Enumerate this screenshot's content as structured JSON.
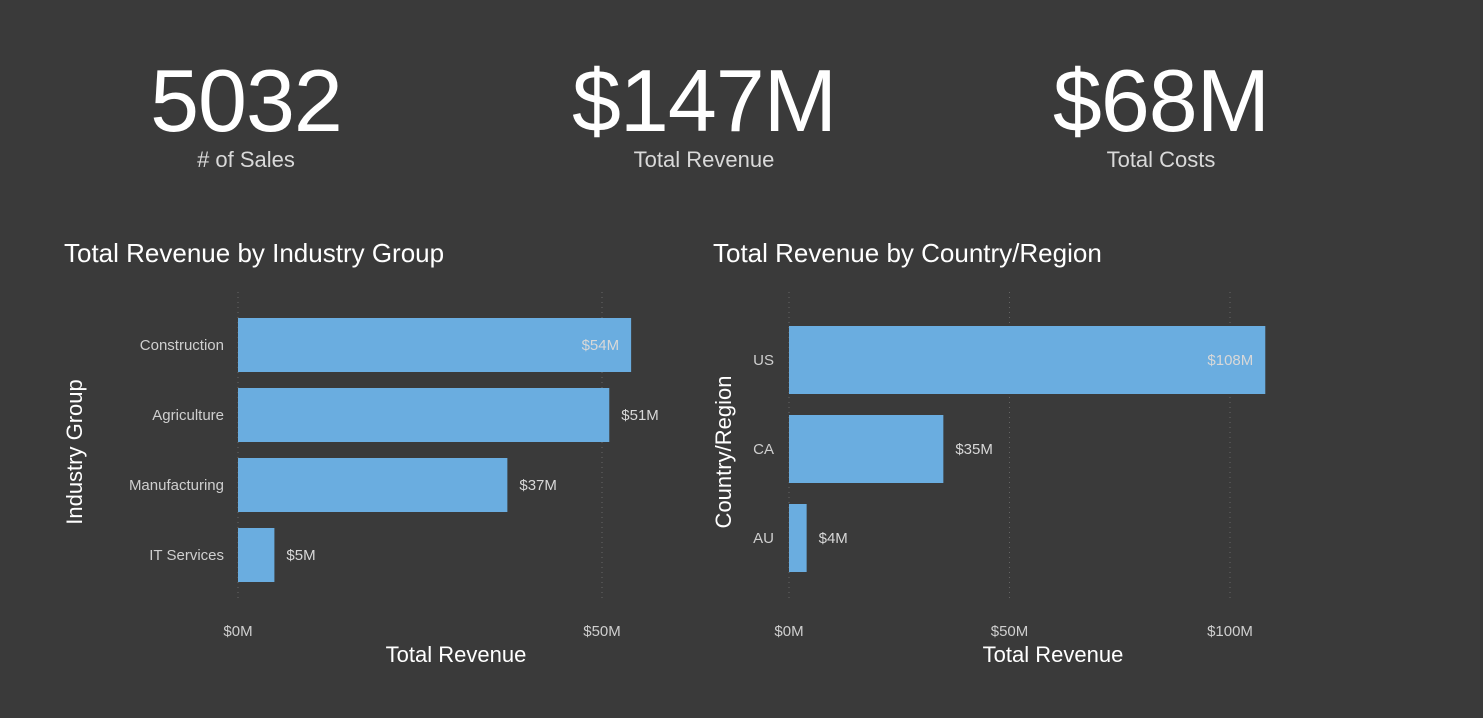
{
  "kpis": [
    {
      "value": "5032",
      "label": "# of Sales"
    },
    {
      "value": "$147M",
      "label": "Total Revenue"
    },
    {
      "value": "$68M",
      "label": "Total Costs"
    }
  ],
  "colors": {
    "background": "#3a3a3a",
    "bar": "#6aade0",
    "gridline": "#666666"
  },
  "chart_data": [
    {
      "type": "bar",
      "orientation": "horizontal",
      "title": "Total Revenue by Industry Group",
      "xlabel": "Total Revenue",
      "ylabel": "Industry Group",
      "categories": [
        "Construction",
        "Agriculture",
        "Manufacturing",
        "IT Services"
      ],
      "values": [
        54,
        51,
        37,
        5
      ],
      "value_labels": [
        "$54M",
        "$51M",
        "$37M",
        "$5M"
      ],
      "xlim": [
        0,
        60
      ],
      "xticks": [
        0,
        50
      ],
      "xtick_labels": [
        "$0M",
        "$50M"
      ],
      "grid": "vertical dotted"
    },
    {
      "type": "bar",
      "orientation": "horizontal",
      "title": "Total Revenue by Country/Region",
      "xlabel": "Total Revenue",
      "ylabel": "Country/Region",
      "categories": [
        "US",
        "CA",
        "AU"
      ],
      "values": [
        108,
        35,
        4
      ],
      "value_labels": [
        "$108M",
        "$35M",
        "$4M"
      ],
      "xlim": [
        0,
        110
      ],
      "xticks": [
        0,
        50,
        100
      ],
      "xtick_labels": [
        "$0M",
        "$50M",
        "$100M"
      ],
      "grid": "vertical dotted"
    }
  ]
}
